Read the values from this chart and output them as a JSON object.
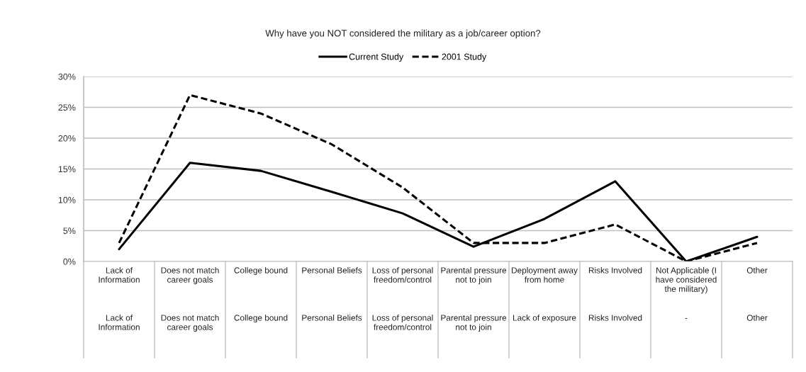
{
  "chart_data": {
    "type": "line",
    "title": "Why have you NOT considered the military as a job/career option?",
    "categories": [
      "Lack of Information",
      "Does not match career goals",
      "College bound",
      "Personal Beliefs",
      "Loss of personal freedom/control",
      "Parental pressure not to join",
      "Deployment away from home",
      "Risks Involved",
      "Not Applicable (I have considered the military)",
      "Other"
    ],
    "annotations": [
      "Lack of Information",
      "Does not match career goals",
      "College bound",
      "Personal Beliefs",
      "Loss of personal freedom/control",
      "Parental pressure not to join",
      "Lack of exposure",
      "Risks Involved",
      "-",
      "Other"
    ],
    "series": [
      {
        "name": "Current Study",
        "color": "#000000",
        "line_style": "solid",
        "values": [
          2.0,
          16.0,
          14.7,
          11.3,
          7.8,
          2.4,
          6.9,
          13.0,
          0.0,
          4.0
        ]
      },
      {
        "name": "2001 Study",
        "color": "#000000",
        "line_style": "dashed",
        "values": [
          3,
          27,
          24,
          19,
          12,
          3,
          3,
          6,
          0,
          3
        ]
      }
    ],
    "ylim": [
      0,
      30
    ],
    "yticks": [
      {
        "value": 0,
        "label": "0%"
      },
      {
        "value": 5,
        "label": "5%"
      },
      {
        "value": 10,
        "label": "10%"
      },
      {
        "value": 15,
        "label": "15%"
      },
      {
        "value": 20,
        "label": "20%"
      },
      {
        "value": 25,
        "label": "25%"
      },
      {
        "value": 30,
        "label": "30%"
      }
    ],
    "grid": "y",
    "legend": "top",
    "marker": "none"
  }
}
